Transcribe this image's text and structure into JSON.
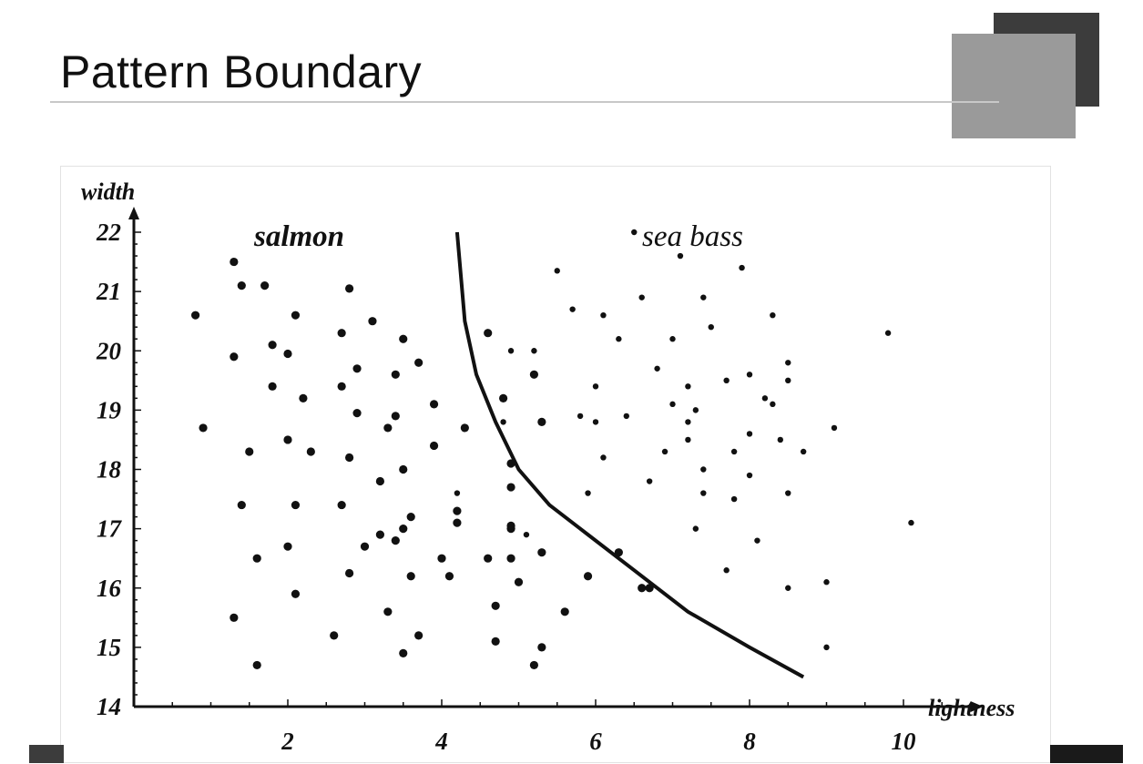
{
  "slide": {
    "title": "Pattern Boundary"
  },
  "colors": {
    "deco_dark": "#3c3c3c",
    "deco_light": "#9a9a9a",
    "rule": "#c8c8c8"
  },
  "chart_data": {
    "type": "scatter",
    "title": "",
    "xlabel": "lightness",
    "ylabel": "width",
    "xlim": [
      0,
      10.8
    ],
    "ylim": [
      14,
      22
    ],
    "xticks": [
      2,
      4,
      6,
      8,
      10
    ],
    "yticks": [
      14,
      15,
      16,
      17,
      18,
      19,
      20,
      21,
      22
    ],
    "grid": false,
    "class_labels": {
      "salmon": "salmon",
      "sea_bass": "sea bass"
    },
    "series": [
      {
        "name": "salmon",
        "marker": "large-dot",
        "points": [
          [
            0.8,
            20.6
          ],
          [
            0.9,
            18.7
          ],
          [
            1.3,
            19.9
          ],
          [
            1.3,
            21.5
          ],
          [
            1.4,
            21.1
          ],
          [
            1.4,
            17.4
          ],
          [
            1.3,
            15.5
          ],
          [
            1.5,
            18.3
          ],
          [
            1.6,
            16.5
          ],
          [
            1.6,
            14.7
          ],
          [
            1.7,
            21.1
          ],
          [
            1.8,
            20.1
          ],
          [
            1.8,
            19.4
          ],
          [
            2.0,
            19.95
          ],
          [
            2.0,
            18.5
          ],
          [
            2.0,
            16.7
          ],
          [
            2.1,
            20.6
          ],
          [
            2.1,
            17.4
          ],
          [
            2.1,
            15.9
          ],
          [
            2.2,
            19.2
          ],
          [
            2.3,
            18.3
          ],
          [
            2.6,
            15.2
          ],
          [
            2.7,
            20.3
          ],
          [
            2.7,
            19.4
          ],
          [
            2.7,
            17.4
          ],
          [
            2.8,
            21.05
          ],
          [
            2.9,
            19.7
          ],
          [
            2.9,
            18.95
          ],
          [
            2.8,
            18.2
          ],
          [
            2.8,
            16.25
          ],
          [
            3.0,
            16.7
          ],
          [
            3.1,
            20.5
          ],
          [
            3.2,
            17.8
          ],
          [
            3.2,
            16.9
          ],
          [
            3.3,
            18.7
          ],
          [
            3.3,
            15.6
          ],
          [
            3.4,
            19.6
          ],
          [
            3.4,
            18.9
          ],
          [
            3.4,
            16.8
          ],
          [
            3.5,
            20.2
          ],
          [
            3.5,
            18.0
          ],
          [
            3.5,
            17.0
          ],
          [
            3.5,
            14.9
          ],
          [
            3.6,
            17.2
          ],
          [
            3.6,
            16.2
          ],
          [
            3.7,
            15.2
          ],
          [
            3.7,
            19.8
          ],
          [
            3.9,
            19.1
          ],
          [
            3.9,
            18.4
          ],
          [
            4.0,
            16.5
          ],
          [
            4.1,
            16.2
          ],
          [
            4.2,
            17.1
          ],
          [
            4.2,
            17.3
          ],
          [
            4.3,
            18.7
          ],
          [
            4.6,
            20.3
          ],
          [
            4.6,
            16.5
          ],
          [
            4.7,
            15.7
          ],
          [
            4.7,
            15.1
          ],
          [
            4.8,
            19.2
          ],
          [
            4.9,
            18.1
          ],
          [
            4.9,
            17.7
          ],
          [
            4.9,
            17.0
          ],
          [
            4.9,
            16.5
          ],
          [
            5.0,
            16.1
          ],
          [
            5.2,
            19.6
          ],
          [
            5.3,
            16.6
          ],
          [
            5.3,
            15.0
          ],
          [
            5.2,
            14.7
          ],
          [
            5.3,
            18.8
          ],
          [
            5.6,
            15.6
          ],
          [
            5.9,
            16.2
          ],
          [
            6.3,
            16.6
          ],
          [
            6.6,
            16.0
          ],
          [
            6.7,
            16.0
          ],
          [
            4.9,
            17.05
          ]
        ]
      },
      {
        "name": "sea bass",
        "marker": "small-dot",
        "points": [
          [
            4.2,
            17.6
          ],
          [
            4.8,
            18.8
          ],
          [
            4.9,
            20.0
          ],
          [
            5.1,
            16.9
          ],
          [
            5.2,
            20.0
          ],
          [
            5.5,
            21.35
          ],
          [
            5.7,
            20.7
          ],
          [
            5.8,
            18.9
          ],
          [
            5.9,
            17.6
          ],
          [
            6.0,
            19.4
          ],
          [
            6.0,
            18.8
          ],
          [
            6.1,
            20.6
          ],
          [
            6.1,
            18.2
          ],
          [
            6.3,
            20.2
          ],
          [
            6.4,
            18.9
          ],
          [
            6.5,
            22.0
          ],
          [
            6.6,
            20.9
          ],
          [
            6.7,
            17.8
          ],
          [
            6.8,
            19.7
          ],
          [
            6.9,
            18.3
          ],
          [
            7.0,
            19.1
          ],
          [
            7.0,
            20.2
          ],
          [
            7.1,
            21.6
          ],
          [
            7.2,
            19.4
          ],
          [
            7.2,
            18.8
          ],
          [
            7.2,
            18.5
          ],
          [
            7.3,
            17.0
          ],
          [
            7.3,
            19.0
          ],
          [
            7.4,
            20.9
          ],
          [
            7.4,
            18.0
          ],
          [
            7.4,
            17.6
          ],
          [
            7.5,
            20.4
          ],
          [
            7.7,
            19.5
          ],
          [
            7.7,
            16.3
          ],
          [
            7.8,
            18.3
          ],
          [
            7.8,
            17.5
          ],
          [
            7.9,
            21.4
          ],
          [
            8.0,
            18.6
          ],
          [
            8.0,
            19.6
          ],
          [
            8.0,
            17.9
          ],
          [
            8.1,
            16.8
          ],
          [
            8.2,
            19.2
          ],
          [
            8.3,
            20.6
          ],
          [
            8.3,
            19.1
          ],
          [
            8.4,
            18.5
          ],
          [
            8.5,
            19.8
          ],
          [
            8.5,
            19.5
          ],
          [
            8.5,
            17.6
          ],
          [
            8.5,
            16.0
          ],
          [
            8.7,
            18.3
          ],
          [
            9.0,
            16.1
          ],
          [
            9.0,
            15.0
          ],
          [
            9.1,
            18.7
          ],
          [
            9.8,
            20.3
          ],
          [
            10.1,
            17.1
          ]
        ]
      }
    ],
    "boundary": {
      "name": "decision boundary",
      "points": [
        [
          4.2,
          22.0
        ],
        [
          4.3,
          20.5
        ],
        [
          4.45,
          19.6
        ],
        [
          4.7,
          18.8
        ],
        [
          5.0,
          18.0
        ],
        [
          5.4,
          17.4
        ],
        [
          5.9,
          16.9
        ],
        [
          6.5,
          16.3
        ],
        [
          7.2,
          15.6
        ],
        [
          8.0,
          15.0
        ],
        [
          8.7,
          14.5
        ]
      ]
    }
  }
}
